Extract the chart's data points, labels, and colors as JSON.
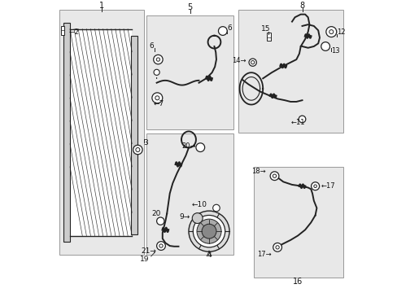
{
  "bg_color": "#ffffff",
  "box_fill": "#e8e8e8",
  "box_edge": "#999999",
  "line_color": "#222222",
  "text_color": "#111111",
  "boxes": {
    "cond": [
      0.02,
      0.13,
      0.31,
      0.97
    ],
    "hose5": [
      0.32,
      0.56,
      0.62,
      0.95
    ],
    "hose8": [
      0.635,
      0.55,
      0.995,
      0.97
    ],
    "hose16": [
      0.69,
      0.05,
      0.995,
      0.43
    ]
  },
  "fig_w": 4.89,
  "fig_h": 3.6,
  "dpi": 100
}
